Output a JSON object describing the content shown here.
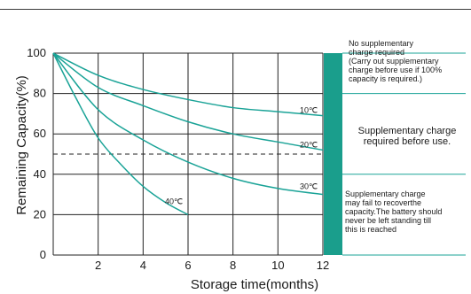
{
  "chart_data": {
    "type": "line",
    "xlabel": "Storage time(months)",
    "ylabel": "Remaining Capacity(%)",
    "xlim": [
      0,
      12
    ],
    "ylim": [
      0,
      100
    ],
    "x_ticks": [
      2,
      4,
      6,
      8,
      10,
      12
    ],
    "y_ticks": [
      0,
      20,
      40,
      60,
      80,
      100
    ],
    "grid": true,
    "reference_line": {
      "y": 50,
      "style": "dashed"
    },
    "series": [
      {
        "name": "10℃",
        "x": [
          0,
          2,
          4,
          6,
          8,
          10,
          12
        ],
        "y": [
          100,
          89,
          82,
          77,
          73,
          71,
          69
        ]
      },
      {
        "name": "20℃",
        "x": [
          0,
          2,
          4,
          6,
          8,
          10,
          12
        ],
        "y": [
          100,
          83,
          74,
          66,
          60,
          56,
          52
        ]
      },
      {
        "name": "30℃",
        "x": [
          0,
          2,
          4,
          6,
          8,
          10,
          12
        ],
        "y": [
          100,
          72,
          57,
          46,
          38,
          33,
          30
        ]
      },
      {
        "name": "40℃",
        "x": [
          0,
          1,
          2,
          3,
          4,
          5,
          6
        ],
        "y": [
          100,
          78,
          58,
          45,
          34,
          26,
          20
        ]
      }
    ],
    "zones": [
      {
        "from": 80,
        "to": 100,
        "text": "No supplementary\ncharge required\n(Carry out supplementary\n charge before use if 100%\n capacity is required.)"
      },
      {
        "from": 40,
        "to": 80,
        "text": "Supplementary charge\nrequired before use."
      },
      {
        "from": 0,
        "to": 40,
        "text": "Supplementary charge\nmay fail to recoverthe\ncapacity.The battery should\nnever be left standing till\nthis is reached"
      }
    ],
    "colors": {
      "curve": "#1aa397",
      "zone_bar": "#1a9e8c",
      "grid": "#222222"
    }
  }
}
